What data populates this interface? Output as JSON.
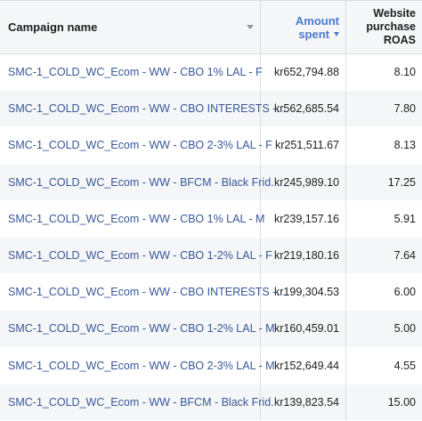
{
  "headers": {
    "campaign_name": "Campaign name",
    "amount_spent_line1": "Amount",
    "amount_spent_line2": "spent",
    "roas_line1": "Website",
    "roas_line2": "purchase",
    "roas_line3": "ROAS"
  },
  "rows": [
    {
      "name": "SMC-1_COLD_WC_Ecom - WW - CBO 1% LAL - F",
      "amount": "kr652,794.88",
      "roas": "8.10"
    },
    {
      "name": "SMC-1_COLD_WC_Ecom - WW - CBO INTERESTS -...",
      "amount": "kr562,685.54",
      "roas": "7.80"
    },
    {
      "name": "SMC-1_COLD_WC_Ecom - WW - CBO 2-3% LAL - F",
      "amount": "kr251,511.67",
      "roas": "8.13"
    },
    {
      "name": "SMC-1_COLD_WC_Ecom - WW - BFCM - Black Frid...",
      "amount": "kr245,989.10",
      "roas": "17.25"
    },
    {
      "name": "SMC-1_COLD_WC_Ecom - WW - CBO 1% LAL - M",
      "amount": "kr239,157.16",
      "roas": "5.91"
    },
    {
      "name": "SMC-1_COLD_WC_Ecom - WW - CBO 1-2% LAL - F",
      "amount": "kr219,180.16",
      "roas": "7.64"
    },
    {
      "name": "SMC-1_COLD_WC_Ecom - WW - CBO INTERESTS -...",
      "amount": "kr199,304.53",
      "roas": "6.00"
    },
    {
      "name": "SMC-1_COLD_WC_Ecom - WW - CBO 1-2% LAL - M",
      "amount": "kr160,459.01",
      "roas": "5.00"
    },
    {
      "name": "SMC-1_COLD_WC_Ecom - WW - CBO 2-3% LAL - M",
      "amount": "kr152,649.44",
      "roas": "4.55"
    },
    {
      "name": "SMC-1_COLD_WC_Ecom - WW - BFCM - Black Frid...",
      "amount": "kr139,823.54",
      "roas": "15.00"
    }
  ],
  "colors": {
    "link": "#385898",
    "sort_active": "#4a7bd0",
    "stripe": "#f5f6f7"
  }
}
